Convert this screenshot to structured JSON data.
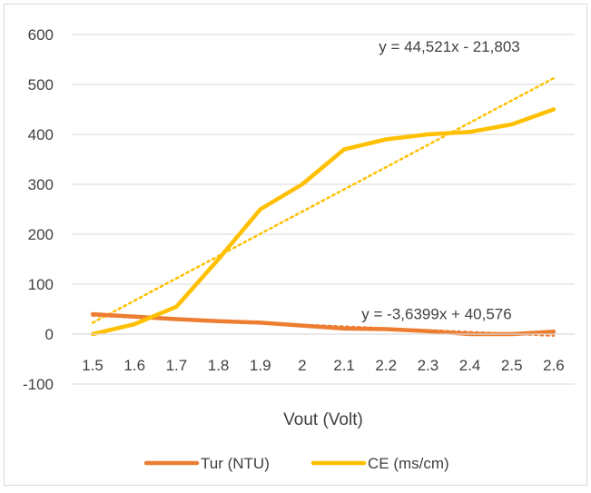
{
  "chart_data": {
    "type": "line",
    "title": "",
    "xlabel": "Vout (Volt)",
    "ylabel": "",
    "categories": [
      "1.5",
      "1.6",
      "1.7",
      "1.8",
      "1.9",
      "2",
      "2.1",
      "2.2",
      "2.3",
      "2.4",
      "2.5",
      "2.6"
    ],
    "ylim": [
      -100,
      600
    ],
    "yticks": [
      "-100",
      "0",
      "100",
      "200",
      "300",
      "400",
      "500",
      "600"
    ],
    "grid": true,
    "legend_position": "bottom",
    "series": [
      {
        "name": "Tur (NTU)",
        "color": "#ED7D31",
        "values": [
          40,
          35,
          30,
          26,
          23,
          17,
          11,
          10,
          6,
          0,
          0,
          5
        ],
        "trendline": {
          "slope": -3.6399,
          "intercept": 40.576,
          "label": "y = -3,6399x + 40,576"
        }
      },
      {
        "name": "CE (ms/cm)",
        "color": "#FFC000",
        "values": [
          0,
          20,
          55,
          150,
          250,
          300,
          370,
          390,
          400,
          405,
          420,
          450
        ],
        "trendline": {
          "slope": 44.521,
          "intercept": -21.803,
          "label": "y = 44,521x - 21,803"
        }
      }
    ]
  }
}
